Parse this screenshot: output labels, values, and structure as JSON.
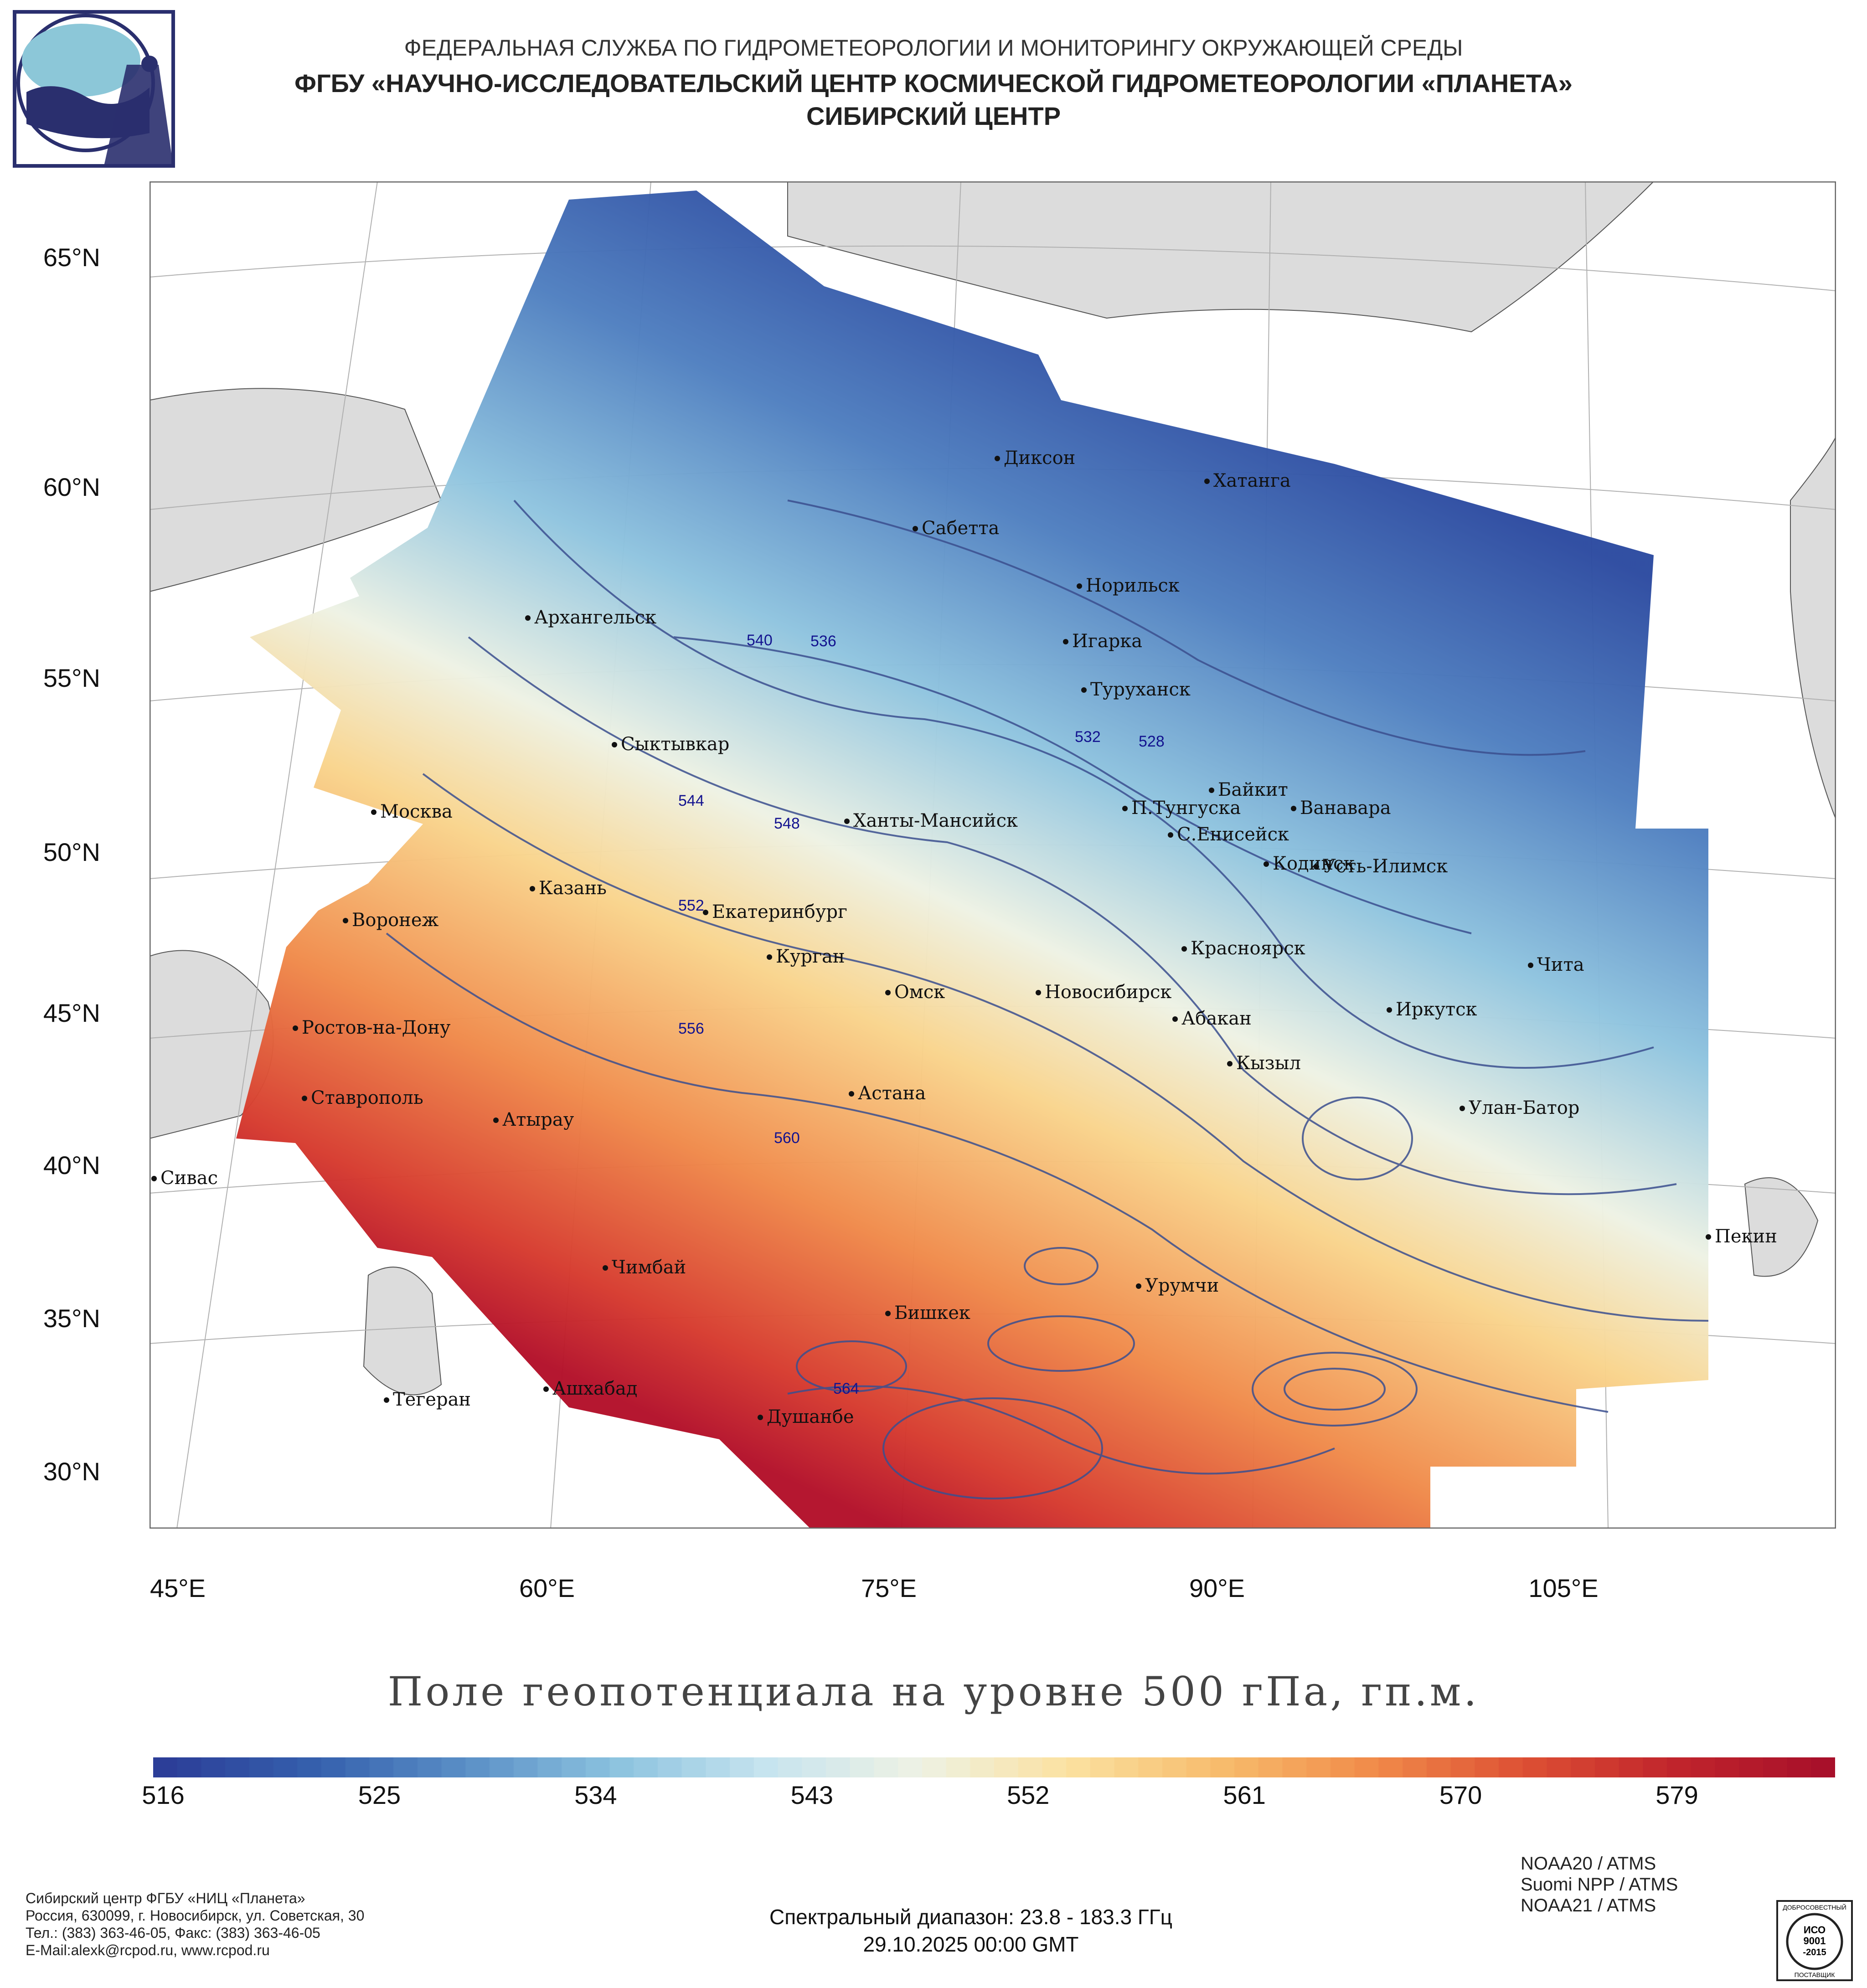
{
  "header": {
    "org": "ФЕДЕРАЛЬНАЯ СЛУЖБА ПО ГИДРОМЕТЕОРОЛОГИИ И МОНИТОРИНГУ ОКРУЖАЮЩЕЙ СРЕДЫ",
    "institution": "ФГБУ «НАУЧНО-ИССЛЕДОВАТЕЛЬСКИЙ ЦЕНТР КОСМИЧЕСКОЙ ГИДРОМЕТЕОРОЛОГИИ «ПЛАНЕТА»",
    "center": "СИБИРСКИЙ ЦЕНТР"
  },
  "map": {
    "lat_labels": [
      "65°N",
      "60°N",
      "55°N",
      "50°N",
      "45°N",
      "40°N",
      "35°N",
      "30°N"
    ],
    "lon_labels": [
      "45°E",
      "60°E",
      "75°E",
      "90°E",
      "105°E"
    ],
    "colors": {
      "cold": "#2c4aa0",
      "mid": "#eef2e4",
      "warm": "#b3102a",
      "land": "#dcdcdc",
      "contour": "#3b4f8f",
      "contour_label": "#13138f"
    },
    "cities": [
      {
        "name": "Диксон"
      },
      {
        "name": "Хатанга"
      },
      {
        "name": "Сабетта"
      },
      {
        "name": "Норильск"
      },
      {
        "name": "Архангельск"
      },
      {
        "name": "Игарка"
      },
      {
        "name": "Туруханск"
      },
      {
        "name": "Сыктывкар"
      },
      {
        "name": "Байкит"
      },
      {
        "name": "Москва"
      },
      {
        "name": "П.Тунгуска"
      },
      {
        "name": "Ванавара"
      },
      {
        "name": "Ханты-Мансийск"
      },
      {
        "name": "С.Енисейск"
      },
      {
        "name": "Кодинск"
      },
      {
        "name": "Усть-Илимск"
      },
      {
        "name": "Казань"
      },
      {
        "name": "Воронеж"
      },
      {
        "name": "Екатеринбург"
      },
      {
        "name": "Красноярск"
      },
      {
        "name": "Курган"
      },
      {
        "name": "Чита"
      },
      {
        "name": "Омск"
      },
      {
        "name": "Новосибирск"
      },
      {
        "name": "Ростов-на-Дону"
      },
      {
        "name": "Иркутск"
      },
      {
        "name": "Абакан"
      },
      {
        "name": "Кызыл"
      },
      {
        "name": "Ставрополь"
      },
      {
        "name": "Астана"
      },
      {
        "name": "Улан-Батор"
      },
      {
        "name": "Атырау"
      },
      {
        "name": "Сивас"
      },
      {
        "name": "Пекин"
      },
      {
        "name": "Чимбай"
      },
      {
        "name": "Урумчи"
      },
      {
        "name": "Бишкек"
      },
      {
        "name": "Тегеран"
      },
      {
        "name": "Ашхабад"
      },
      {
        "name": "Душанбе"
      }
    ],
    "contour_labels": [
      "540",
      "536",
      "532",
      "528",
      "544",
      "548",
      "552",
      "556",
      "560",
      "564"
    ]
  },
  "plot_title": "Поле геопотенциала на уровне 500 гПа, гп.м.",
  "colorbar": {
    "min": 516,
    "max": 586,
    "ticks": [
      "516",
      "525",
      "534",
      "543",
      "552",
      "561",
      "570",
      "579"
    ]
  },
  "footer": {
    "left": [
      "Сибирский центр ФГБУ «НИЦ «Планета»",
      "Россия, 630099, г. Новосибирск, ул. Советская, 30",
      "Тел.: (383) 363-46-05, Факс: (383) 363-46-05",
      "E-Mail:alexk@rcpod.ru, www.rcpod.ru"
    ],
    "sensors": [
      "NOAA20 / ATMS",
      "Suomi NPP / ATMS",
      "NOAA21 / ATMS"
    ],
    "spectral": "Спектральный диапазон: 23.8 - 183.3 ГГц",
    "datetime": "29.10.2025 00:00 GMT",
    "iso_badge": {
      "top": "ДОБРОСОВЕСТНЫЙ",
      "mid1": "ИСО",
      "mid2": "9001",
      "mid3": "-2015",
      "bottom": "ПОСТАВЩИК"
    }
  }
}
